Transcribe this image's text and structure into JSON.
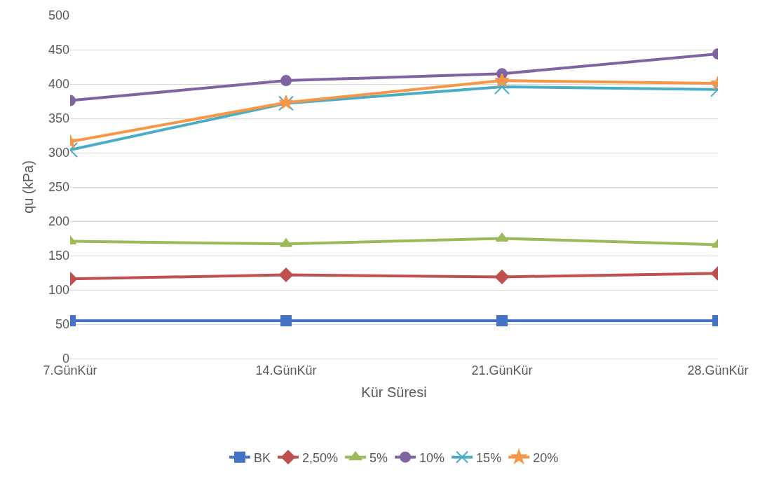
{
  "chart_data": {
    "type": "line",
    "xlabel": "Kür Süresi",
    "ylabel": "qu (kPa)",
    "categories": [
      "7.GünKür",
      "14.GünKür",
      "21.GünKür",
      "28.GünKür"
    ],
    "ylim": [
      0,
      500
    ],
    "yticks": [
      0,
      50,
      100,
      150,
      200,
      250,
      300,
      350,
      400,
      450,
      500
    ],
    "grid": "y",
    "legend": "bottom",
    "series": [
      {
        "name": "BK",
        "color": "#4472c4",
        "marker": "square",
        "values": [
          55,
          55,
          55,
          55
        ]
      },
      {
        "name": "2,50%",
        "color": "#c0504d",
        "marker": "diamond",
        "values": [
          116,
          122,
          119,
          124
        ]
      },
      {
        "name": "5%",
        "color": "#9bbb59",
        "marker": "triangle",
        "values": [
          171,
          167,
          175,
          166
        ]
      },
      {
        "name": "10%",
        "color": "#8064a2",
        "marker": "circle",
        "values": [
          376,
          405,
          415,
          444
        ]
      },
      {
        "name": "15%",
        "color": "#4bacc6",
        "marker": "cross",
        "values": [
          304,
          372,
          396,
          392
        ]
      },
      {
        "name": "20%",
        "color": "#f79646",
        "marker": "star",
        "values": [
          316,
          373,
          405,
          401
        ]
      }
    ]
  }
}
